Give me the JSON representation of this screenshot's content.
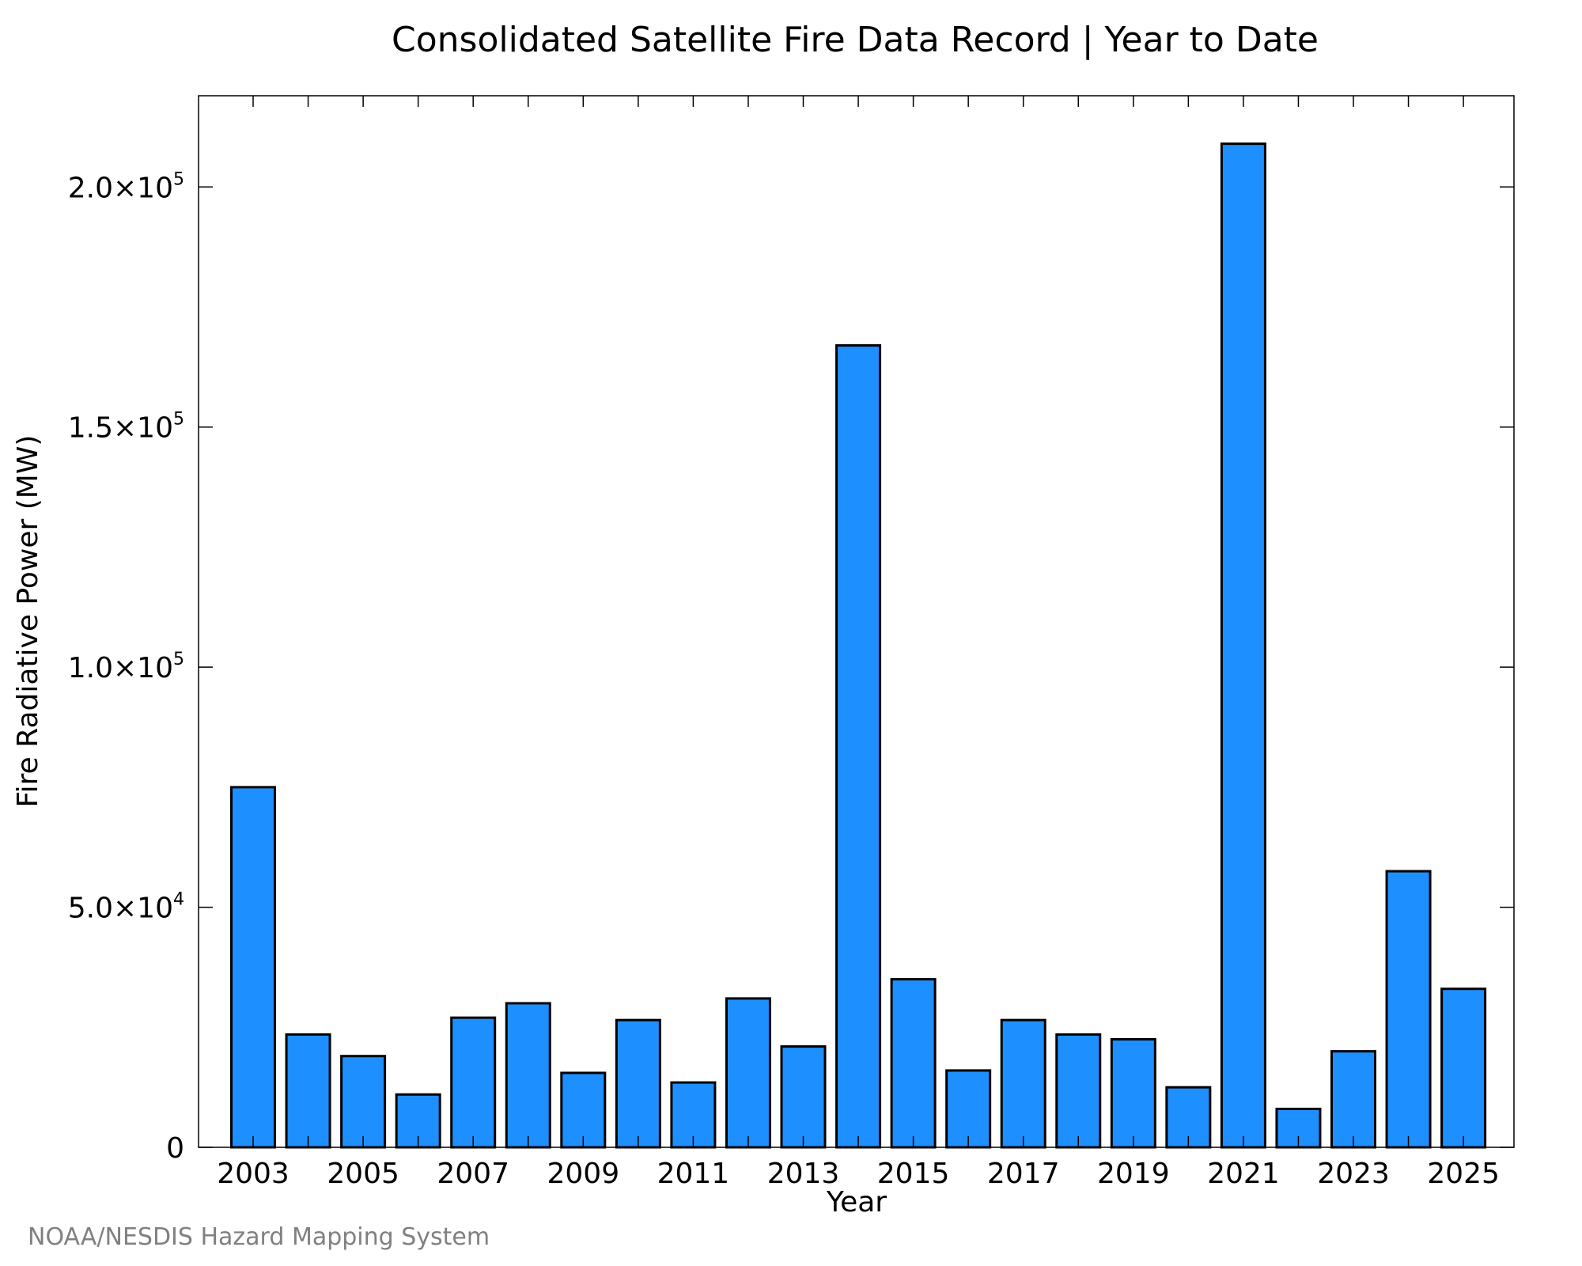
{
  "chart_data": {
    "type": "bar",
    "title": "Consolidated Satellite Fire Data Record | Year to Date",
    "xlabel": "Year",
    "ylabel": "Fire Radiative Power (MW)",
    "source": "NOAA/NESDIS Hazard Mapping System",
    "categories": [
      "2003",
      "2004",
      "2005",
      "2006",
      "2007",
      "2008",
      "2009",
      "2010",
      "2011",
      "2012",
      "2013",
      "2014",
      "2015",
      "2016",
      "2017",
      "2018",
      "2019",
      "2020",
      "2021",
      "2022",
      "2023",
      "2024",
      "2025"
    ],
    "values": [
      75000,
      23500,
      19000,
      11000,
      27000,
      30000,
      15500,
      26500,
      13500,
      31000,
      21000,
      167000,
      35000,
      16000,
      26500,
      23500,
      22500,
      12500,
      209000,
      8000,
      20000,
      57500,
      33000
    ],
    "x_tick_labels": [
      "2003",
      "2005",
      "2007",
      "2009",
      "2011",
      "2013",
      "2015",
      "2017",
      "2019",
      "2021",
      "2023",
      "2025"
    ],
    "y_ticks": [
      {
        "value": 0,
        "mant": "0",
        "exp": ""
      },
      {
        "value": 50000,
        "mant": "5.0×10",
        "exp": "4"
      },
      {
        "value": 100000,
        "mant": "1.0×10",
        "exp": "5"
      },
      {
        "value": 150000,
        "mant": "1.5×10",
        "exp": "5"
      },
      {
        "value": 200000,
        "mant": "2.0×10",
        "exp": "5"
      }
    ],
    "ylim": [
      0,
      219000
    ],
    "grid": false,
    "bar_color": "#1e8fff",
    "bar_edge_color": "#000000",
    "source_color": "#808080"
  }
}
